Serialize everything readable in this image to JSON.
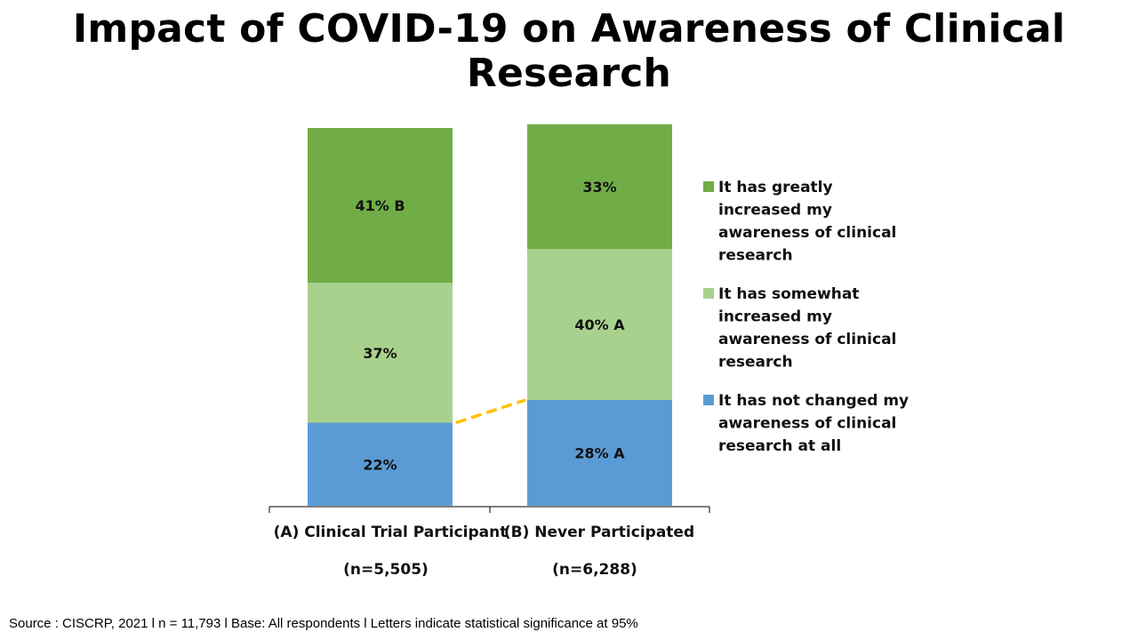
{
  "header": {
    "title_line1": "Impact of COVID-19 on Awareness of Clinical",
    "title_line2": "Research"
  },
  "footer": {
    "source": "Source : CISCRP, 2021 l n = 11,793 l  Base: All respondents l Letters indicate statistical significance at 95%"
  },
  "chart_data": {
    "type": "bar",
    "stacked": true,
    "percent_stacked": true,
    "title": "Impact of COVID-19 on Awareness of Clinical Research",
    "categories": [
      "(A) Clinical Trial Participant",
      "(B) Never Participated"
    ],
    "sample_sizes": [
      "(n=5,505)",
      "(n=6,288)"
    ],
    "ylim": [
      0,
      100
    ],
    "grid": false,
    "legend_position": "right",
    "series": [
      {
        "name": "It has not changed my awareness of clinical research at all",
        "legend_lines": [
          "It has not changed my",
          "awareness of clinical",
          "research at all"
        ],
        "values": [
          22,
          28
        ],
        "labels": [
          "22%",
          "28% A"
        ],
        "color": "#5B9BD5"
      },
      {
        "name": "It has somewhat increased my awareness of clinical research",
        "legend_lines": [
          "It has somewhat",
          "increased my",
          "awareness of clinical",
          "research"
        ],
        "values": [
          37,
          40
        ],
        "labels": [
          "37%",
          "40% A"
        ],
        "color": "#A9D18E"
      },
      {
        "name": "It has greatly increased my awareness of clinical research",
        "legend_lines": [
          "It has greatly",
          "increased my",
          "awareness of clinical",
          "research"
        ],
        "values": [
          41,
          33
        ],
        "labels": [
          "41% B",
          "33%"
        ],
        "color": "#70AD47"
      }
    ],
    "connector": {
      "between_series": 0,
      "color": "#FFC000",
      "style": "dashed"
    },
    "axis_color": "#000000"
  }
}
